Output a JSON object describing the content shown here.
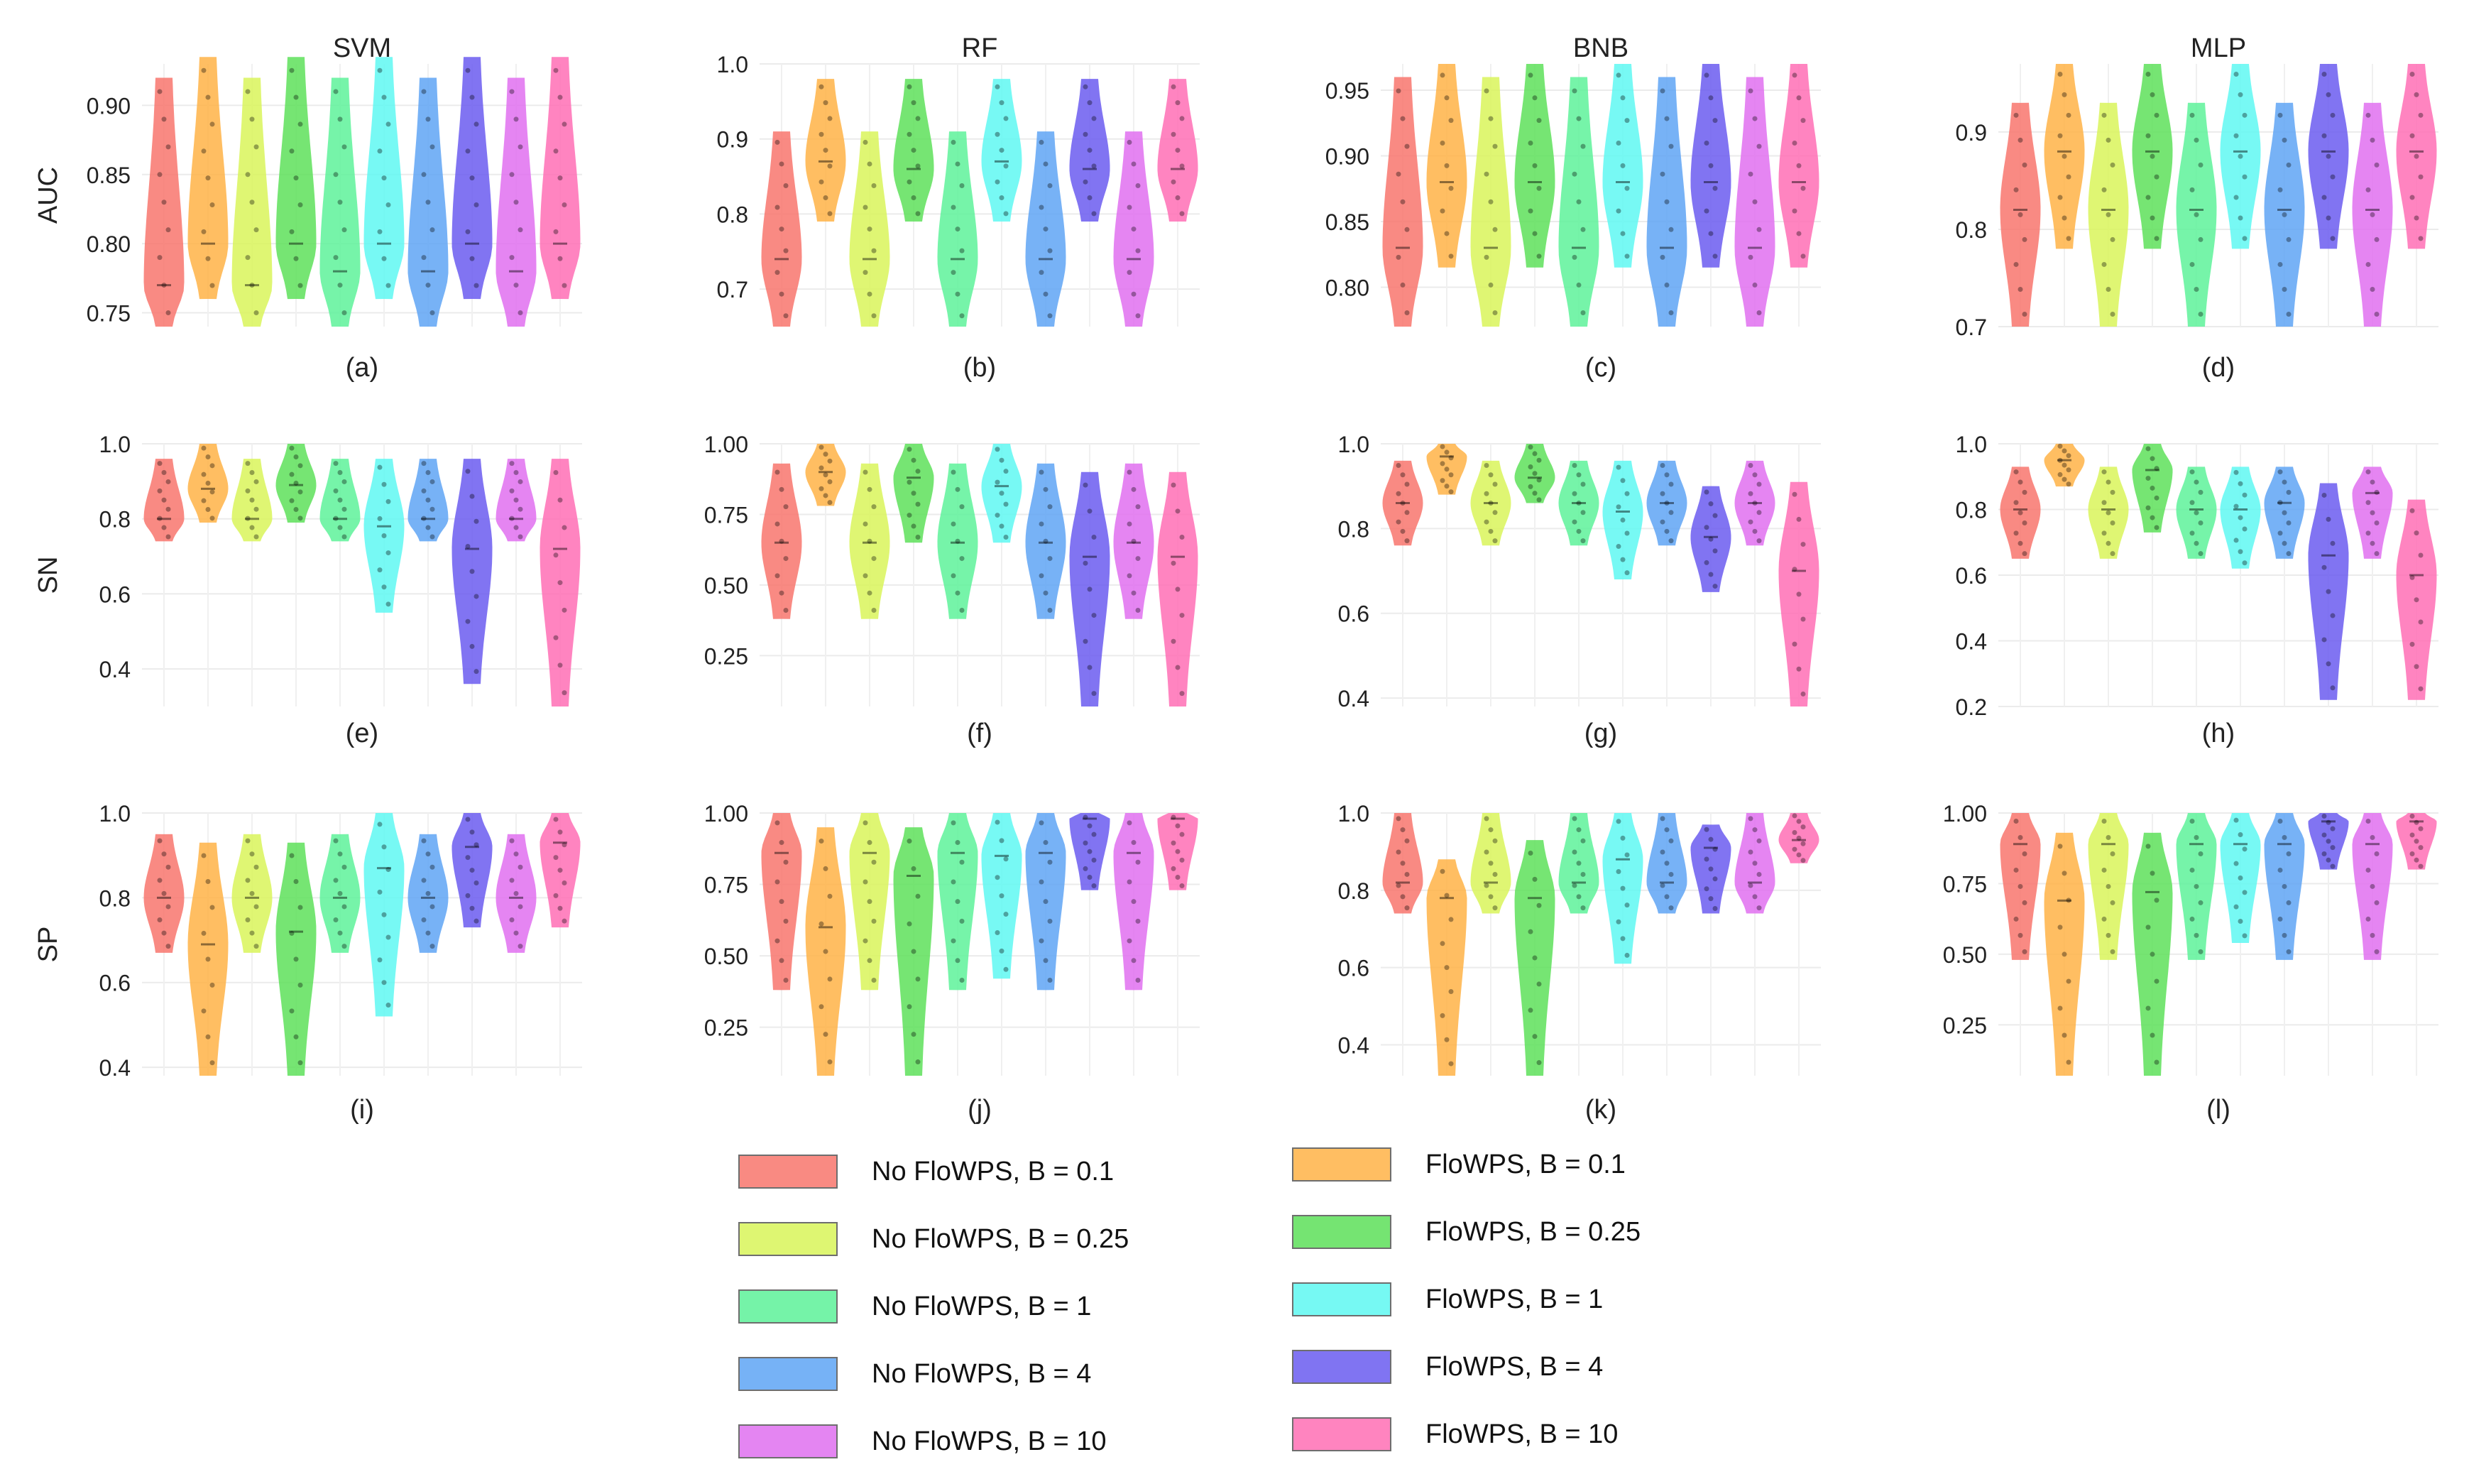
{
  "chart_data": {
    "type": "violin",
    "columns": [
      "SVM",
      "RF",
      "BNB",
      "MLP"
    ],
    "rows": [
      "AUC",
      "SN",
      "SP"
    ],
    "panel_captions": [
      "(a)",
      "(b)",
      "(c)",
      "(d)",
      "(e)",
      "(f)",
      "(g)",
      "(h)",
      "(i)",
      "(j)",
      "(k)",
      "(l)"
    ],
    "groups": [
      {
        "label": "No FloWPS, B = 0.1",
        "color": "#f8766d"
      },
      {
        "label": "FloWPS, B = 0.1",
        "color": "#ffb347"
      },
      {
        "label": "No FloWPS, B = 0.25",
        "color": "#d9f55a"
      },
      {
        "label": "FloWPS, B = 0.25",
        "color": "#5ee05a"
      },
      {
        "label": "No FloWPS, B = 1",
        "color": "#5ef29a"
      },
      {
        "label": "FloWPS, B = 1",
        "color": "#5ff8f2"
      },
      {
        "label": "No FloWPS, B = 4",
        "color": "#5fa5f5"
      },
      {
        "label": "FloWPS, B = 4",
        "color": "#6b5cf0"
      },
      {
        "label": "No FloWPS, B = 10",
        "color": "#e070f0"
      },
      {
        "label": "FloWPS, B = 10",
        "color": "#ff6fb5"
      }
    ],
    "panels": [
      {
        "caption": "(a)",
        "row": "AUC",
        "column": "SVM",
        "ylim": [
          0.74,
          0.93
        ],
        "yticks": [
          "0.75",
          "0.80",
          "0.85",
          "0.90"
        ],
        "series": [
          {
            "min": 0.74,
            "max": 0.92,
            "median": 0.77
          },
          {
            "min": 0.76,
            "max": 0.935,
            "median": 0.8
          },
          {
            "min": 0.74,
            "max": 0.92,
            "median": 0.77
          },
          {
            "min": 0.76,
            "max": 0.935,
            "median": 0.8
          },
          {
            "min": 0.74,
            "max": 0.92,
            "median": 0.78
          },
          {
            "min": 0.76,
            "max": 0.935,
            "median": 0.8
          },
          {
            "min": 0.74,
            "max": 0.92,
            "median": 0.78
          },
          {
            "min": 0.76,
            "max": 0.935,
            "median": 0.8
          },
          {
            "min": 0.74,
            "max": 0.92,
            "median": 0.78
          },
          {
            "min": 0.76,
            "max": 0.935,
            "median": 0.8
          }
        ]
      },
      {
        "caption": "(b)",
        "row": "AUC",
        "column": "RF",
        "ylim": [
          0.65,
          1.0
        ],
        "yticks": [
          "0.7",
          "0.8",
          "0.9",
          "1.0"
        ],
        "series": [
          {
            "min": 0.65,
            "max": 0.91,
            "median": 0.74
          },
          {
            "min": 0.79,
            "max": 0.98,
            "median": 0.87
          },
          {
            "min": 0.65,
            "max": 0.91,
            "median": 0.74
          },
          {
            "min": 0.79,
            "max": 0.98,
            "median": 0.86
          },
          {
            "min": 0.65,
            "max": 0.91,
            "median": 0.74
          },
          {
            "min": 0.79,
            "max": 0.98,
            "median": 0.87
          },
          {
            "min": 0.65,
            "max": 0.91,
            "median": 0.74
          },
          {
            "min": 0.79,
            "max": 0.98,
            "median": 0.86
          },
          {
            "min": 0.65,
            "max": 0.91,
            "median": 0.74
          },
          {
            "min": 0.79,
            "max": 0.98,
            "median": 0.86
          }
        ]
      },
      {
        "caption": "(c)",
        "row": "AUC",
        "column": "BNB",
        "ylim": [
          0.77,
          0.97
        ],
        "yticks": [
          "0.80",
          "0.85",
          "0.90",
          "0.95"
        ],
        "series": [
          {
            "min": 0.77,
            "max": 0.96,
            "median": 0.83
          },
          {
            "min": 0.815,
            "max": 0.97,
            "median": 0.88
          },
          {
            "min": 0.77,
            "max": 0.96,
            "median": 0.83
          },
          {
            "min": 0.815,
            "max": 0.97,
            "median": 0.88
          },
          {
            "min": 0.77,
            "max": 0.96,
            "median": 0.83
          },
          {
            "min": 0.815,
            "max": 0.97,
            "median": 0.88
          },
          {
            "min": 0.77,
            "max": 0.96,
            "median": 0.83
          },
          {
            "min": 0.815,
            "max": 0.97,
            "median": 0.88
          },
          {
            "min": 0.77,
            "max": 0.96,
            "median": 0.83
          },
          {
            "min": 0.815,
            "max": 0.97,
            "median": 0.88
          }
        ]
      },
      {
        "caption": "(d)",
        "row": "AUC",
        "column": "MLP",
        "ylim": [
          0.7,
          0.97
        ],
        "yticks": [
          "0.7",
          "0.8",
          "0.9"
        ],
        "series": [
          {
            "min": 0.7,
            "max": 0.93,
            "median": 0.82
          },
          {
            "min": 0.78,
            "max": 0.97,
            "median": 0.88
          },
          {
            "min": 0.7,
            "max": 0.93,
            "median": 0.82
          },
          {
            "min": 0.78,
            "max": 0.97,
            "median": 0.88
          },
          {
            "min": 0.7,
            "max": 0.93,
            "median": 0.82
          },
          {
            "min": 0.78,
            "max": 0.97,
            "median": 0.88
          },
          {
            "min": 0.7,
            "max": 0.93,
            "median": 0.82
          },
          {
            "min": 0.78,
            "max": 0.97,
            "median": 0.88
          },
          {
            "min": 0.7,
            "max": 0.93,
            "median": 0.82
          },
          {
            "min": 0.78,
            "max": 0.97,
            "median": 0.88
          }
        ]
      },
      {
        "caption": "(e)",
        "row": "SN",
        "column": "SVM",
        "ylim": [
          0.3,
          1.0
        ],
        "yticks": [
          "0.4",
          "0.6",
          "0.8",
          "1.0"
        ],
        "series": [
          {
            "min": 0.74,
            "max": 0.96,
            "median": 0.8
          },
          {
            "min": 0.79,
            "max": 1.0,
            "median": 0.88
          },
          {
            "min": 0.74,
            "max": 0.96,
            "median": 0.8
          },
          {
            "min": 0.79,
            "max": 1.0,
            "median": 0.89
          },
          {
            "min": 0.74,
            "max": 0.96,
            "median": 0.8
          },
          {
            "min": 0.55,
            "max": 0.96,
            "median": 0.78
          },
          {
            "min": 0.74,
            "max": 0.96,
            "median": 0.8
          },
          {
            "min": 0.36,
            "max": 0.96,
            "median": 0.72
          },
          {
            "min": 0.74,
            "max": 0.96,
            "median": 0.8
          },
          {
            "min": 0.3,
            "max": 0.96,
            "median": 0.72
          }
        ]
      },
      {
        "caption": "(f)",
        "row": "SN",
        "column": "RF",
        "ylim": [
          0.07,
          1.0
        ],
        "yticks": [
          "0.25",
          "0.50",
          "0.75",
          "1.00"
        ],
        "series": [
          {
            "min": 0.38,
            "max": 0.93,
            "median": 0.65
          },
          {
            "min": 0.78,
            "max": 1.0,
            "median": 0.9
          },
          {
            "min": 0.38,
            "max": 0.93,
            "median": 0.65
          },
          {
            "min": 0.65,
            "max": 1.0,
            "median": 0.88
          },
          {
            "min": 0.38,
            "max": 0.93,
            "median": 0.65
          },
          {
            "min": 0.65,
            "max": 1.0,
            "median": 0.85
          },
          {
            "min": 0.38,
            "max": 0.93,
            "median": 0.65
          },
          {
            "min": 0.07,
            "max": 0.9,
            "median": 0.6
          },
          {
            "min": 0.38,
            "max": 0.93,
            "median": 0.65
          },
          {
            "min": 0.07,
            "max": 0.9,
            "median": 0.6
          }
        ]
      },
      {
        "caption": "(g)",
        "row": "SN",
        "column": "BNB",
        "ylim": [
          0.38,
          1.0
        ],
        "yticks": [
          "0.4",
          "0.6",
          "0.8",
          "1.0"
        ],
        "series": [
          {
            "min": 0.76,
            "max": 0.96,
            "median": 0.86
          },
          {
            "min": 0.88,
            "max": 1.0,
            "median": 0.97
          },
          {
            "min": 0.76,
            "max": 0.96,
            "median": 0.86
          },
          {
            "min": 0.86,
            "max": 1.0,
            "median": 0.92
          },
          {
            "min": 0.76,
            "max": 0.96,
            "median": 0.86
          },
          {
            "min": 0.68,
            "max": 0.96,
            "median": 0.84
          },
          {
            "min": 0.76,
            "max": 0.96,
            "median": 0.86
          },
          {
            "min": 0.65,
            "max": 0.9,
            "median": 0.78
          },
          {
            "min": 0.76,
            "max": 0.96,
            "median": 0.86
          },
          {
            "min": 0.38,
            "max": 0.91,
            "median": 0.7
          }
        ]
      },
      {
        "caption": "(h)",
        "row": "SN",
        "column": "MLP",
        "ylim": [
          0.2,
          1.0
        ],
        "yticks": [
          "0.2",
          "0.4",
          "0.6",
          "0.8",
          "1.0"
        ],
        "series": [
          {
            "min": 0.65,
            "max": 0.93,
            "median": 0.8
          },
          {
            "min": 0.87,
            "max": 1.0,
            "median": 0.95
          },
          {
            "min": 0.65,
            "max": 0.93,
            "median": 0.8
          },
          {
            "min": 0.73,
            "max": 1.0,
            "median": 0.92
          },
          {
            "min": 0.65,
            "max": 0.93,
            "median": 0.8
          },
          {
            "min": 0.62,
            "max": 0.93,
            "median": 0.8
          },
          {
            "min": 0.65,
            "max": 0.93,
            "median": 0.82
          },
          {
            "min": 0.22,
            "max": 0.88,
            "median": 0.66
          },
          {
            "min": 0.65,
            "max": 0.93,
            "median": 0.85
          },
          {
            "min": 0.22,
            "max": 0.83,
            "median": 0.6
          }
        ]
      },
      {
        "caption": "(i)",
        "row": "SP",
        "column": "SVM",
        "ylim": [
          0.38,
          1.0
        ],
        "yticks": [
          "0.4",
          "0.6",
          "0.8",
          "1.0"
        ],
        "series": [
          {
            "min": 0.67,
            "max": 0.95,
            "median": 0.8
          },
          {
            "min": 0.38,
            "max": 0.93,
            "median": 0.69
          },
          {
            "min": 0.67,
            "max": 0.95,
            "median": 0.8
          },
          {
            "min": 0.38,
            "max": 0.93,
            "median": 0.72
          },
          {
            "min": 0.67,
            "max": 0.95,
            "median": 0.8
          },
          {
            "min": 0.52,
            "max": 1.0,
            "median": 0.87
          },
          {
            "min": 0.67,
            "max": 0.95,
            "median": 0.8
          },
          {
            "min": 0.73,
            "max": 1.0,
            "median": 0.92
          },
          {
            "min": 0.67,
            "max": 0.95,
            "median": 0.8
          },
          {
            "min": 0.73,
            "max": 1.0,
            "median": 0.93
          }
        ]
      },
      {
        "caption": "(j)",
        "row": "SP",
        "column": "RF",
        "ylim": [
          0.08,
          1.0
        ],
        "yticks": [
          "0.25",
          "0.50",
          "0.75",
          "1.00"
        ],
        "series": [
          {
            "min": 0.38,
            "max": 1.0,
            "median": 0.86
          },
          {
            "min": 0.08,
            "max": 0.95,
            "median": 0.6
          },
          {
            "min": 0.38,
            "max": 1.0,
            "median": 0.86
          },
          {
            "min": 0.08,
            "max": 0.95,
            "median": 0.78
          },
          {
            "min": 0.38,
            "max": 1.0,
            "median": 0.86
          },
          {
            "min": 0.42,
            "max": 1.0,
            "median": 0.85
          },
          {
            "min": 0.38,
            "max": 1.0,
            "median": 0.86
          },
          {
            "min": 0.73,
            "max": 1.0,
            "median": 0.98
          },
          {
            "min": 0.38,
            "max": 1.0,
            "median": 0.86
          },
          {
            "min": 0.73,
            "max": 1.0,
            "median": 0.98
          }
        ]
      },
      {
        "caption": "(k)",
        "row": "SP",
        "column": "BNB",
        "ylim": [
          0.32,
          1.0
        ],
        "yticks": [
          "0.4",
          "0.6",
          "0.8",
          "1.0"
        ],
        "series": [
          {
            "min": 0.74,
            "max": 1.0,
            "median": 0.82
          },
          {
            "min": 0.32,
            "max": 0.88,
            "median": 0.78
          },
          {
            "min": 0.74,
            "max": 1.0,
            "median": 0.82
          },
          {
            "min": 0.32,
            "max": 0.93,
            "median": 0.78
          },
          {
            "min": 0.74,
            "max": 1.0,
            "median": 0.82
          },
          {
            "min": 0.61,
            "max": 1.0,
            "median": 0.88
          },
          {
            "min": 0.74,
            "max": 1.0,
            "median": 0.82
          },
          {
            "min": 0.74,
            "max": 0.97,
            "median": 0.91
          },
          {
            "min": 0.74,
            "max": 1.0,
            "median": 0.82
          },
          {
            "min": 0.87,
            "max": 1.0,
            "median": 0.93
          }
        ]
      },
      {
        "caption": "(l)",
        "row": "SP",
        "column": "MLP",
        "ylim": [
          0.07,
          1.0
        ],
        "yticks": [
          "0.25",
          "0.50",
          "0.75",
          "1.00"
        ],
        "series": [
          {
            "min": 0.48,
            "max": 1.0,
            "median": 0.89
          },
          {
            "min": 0.07,
            "max": 0.93,
            "median": 0.69
          },
          {
            "min": 0.48,
            "max": 1.0,
            "median": 0.89
          },
          {
            "min": 0.07,
            "max": 0.93,
            "median": 0.72
          },
          {
            "min": 0.48,
            "max": 1.0,
            "median": 0.89
          },
          {
            "min": 0.54,
            "max": 1.0,
            "median": 0.89
          },
          {
            "min": 0.48,
            "max": 1.0,
            "median": 0.89
          },
          {
            "min": 0.8,
            "max": 1.0,
            "median": 0.97
          },
          {
            "min": 0.48,
            "max": 1.0,
            "median": 0.89
          },
          {
            "min": 0.8,
            "max": 1.0,
            "median": 0.97
          }
        ]
      }
    ]
  }
}
